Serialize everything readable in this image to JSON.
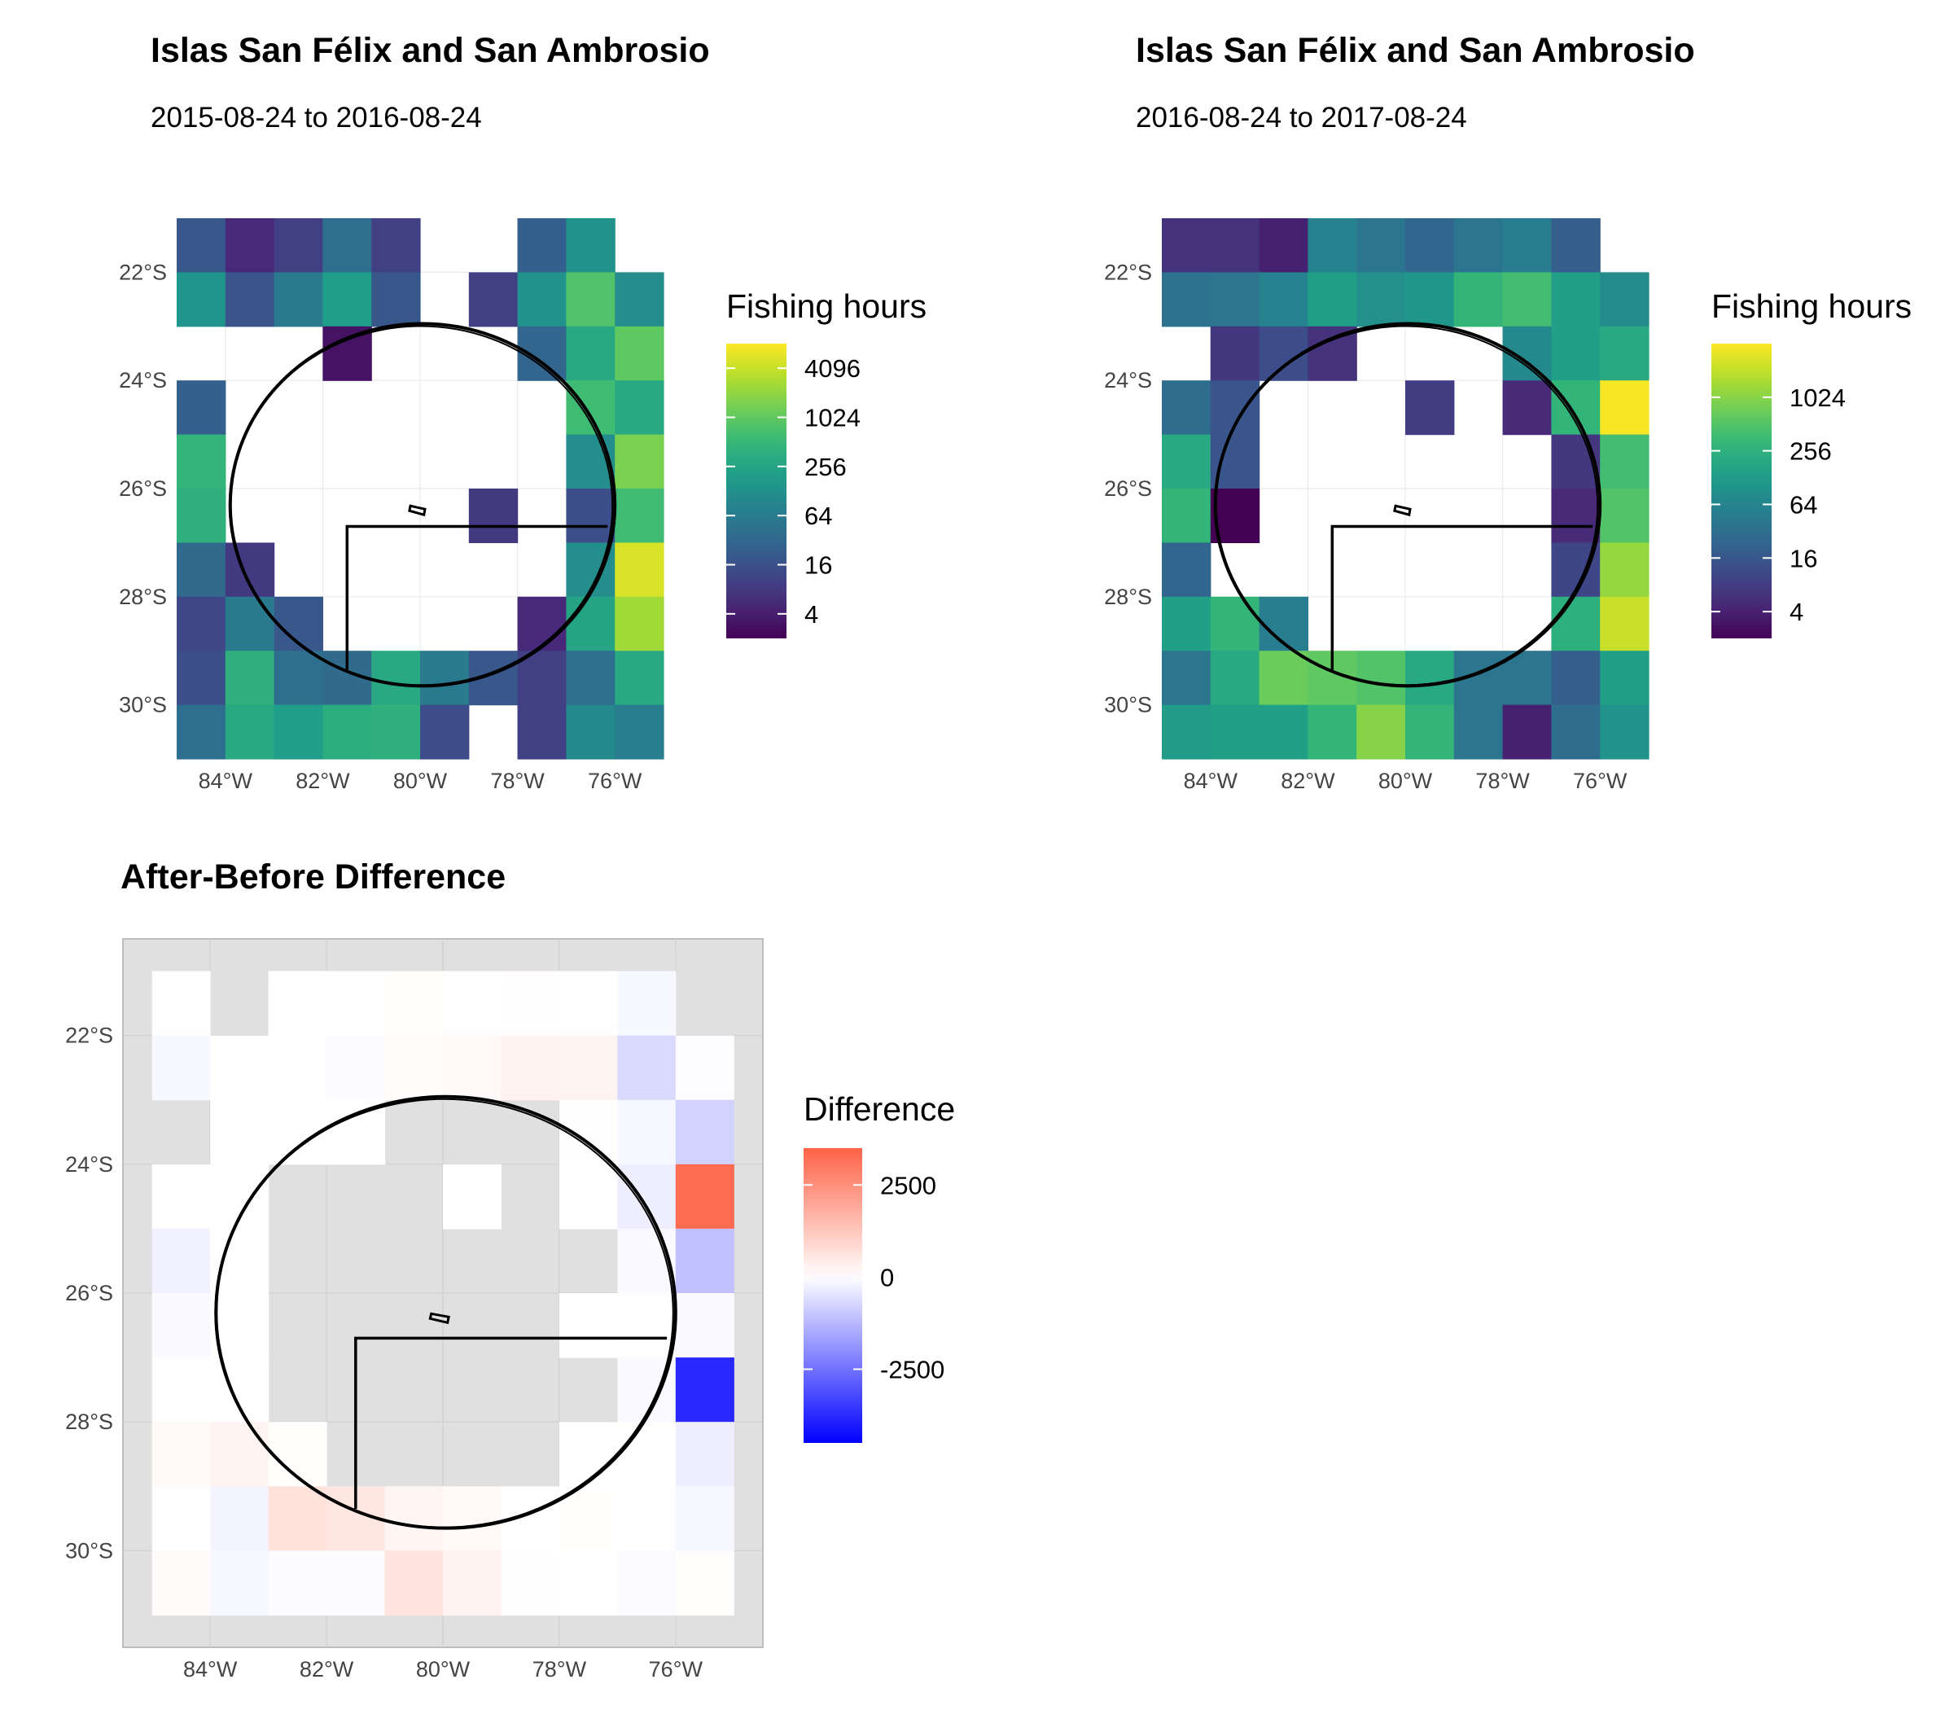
{
  "panels": {
    "before": {
      "title": "Islas San Félix and San Ambrosio",
      "subtitle": "2015-08-24 to 2016-08-24",
      "legend_title": "Fishing hours",
      "legend_ticks": [
        "4096",
        "1024",
        "256",
        "64",
        "16",
        "4"
      ]
    },
    "after": {
      "title": "Islas San Félix and San Ambrosio",
      "subtitle": "2016-08-24 to 2017-08-24",
      "legend_title": "Fishing hours",
      "legend_ticks": [
        "1024",
        "256",
        "64",
        "16",
        "4"
      ]
    },
    "diff": {
      "title": "After-Before Difference",
      "legend_title": "Difference",
      "legend_ticks": [
        "2500",
        "0",
        "-2500"
      ]
    }
  },
  "chart_data": [
    {
      "type": "heatmap",
      "title": "Islas San Félix and San Ambrosio",
      "subtitle": "2015-08-24 to 2016-08-24",
      "x_tick_labels": [
        "84°W",
        "82°W",
        "80°W",
        "78°W",
        "76°W"
      ],
      "y_tick_labels": [
        "22°S",
        "24°S",
        "26°S",
        "28°S",
        "30°S"
      ],
      "x_ticks": [
        -84,
        -82,
        -80,
        -78,
        -76
      ],
      "y_ticks": [
        -22,
        -24,
        -26,
        -28,
        -30
      ],
      "xlim": [
        -85,
        -75
      ],
      "ylim": [
        -31,
        -21
      ],
      "color_scale": "viridis, log2",
      "legend_title": "Fishing hours",
      "legend_breaks": [
        4096,
        1024,
        256,
        64,
        16,
        4
      ],
      "value_range": [
        2,
        8192
      ],
      "cell_lon": [
        -84.5,
        -83.5,
        -82.5,
        -81.5,
        -80.5,
        -79.5,
        -78.5,
        -77.5,
        -76.5,
        -75.5
      ],
      "cell_lat": [
        -21.5,
        -22.5,
        -23.5,
        -24.5,
        -25.5,
        -26.5,
        -27.5,
        -28.5,
        -29.5,
        -30.5
      ],
      "values": [
        [
          20,
          5,
          10,
          40,
          10,
          null,
          null,
          25,
          140,
          null
        ],
        [
          150,
          18,
          60,
          200,
          20,
          null,
          10,
          140,
          800,
          120
        ],
        [
          null,
          null,
          null,
          3,
          null,
          null,
          null,
          30,
          300,
          1000
        ],
        [
          25,
          null,
          null,
          null,
          null,
          null,
          null,
          null,
          600,
          300
        ],
        [
          450,
          null,
          null,
          null,
          null,
          null,
          null,
          null,
          120,
          1500
        ],
        [
          400,
          null,
          null,
          null,
          null,
          null,
          8,
          null,
          15,
          600
        ],
        [
          35,
          8,
          null,
          null,
          null,
          null,
          null,
          null,
          120,
          5000
        ],
        [
          12,
          60,
          20,
          null,
          null,
          null,
          null,
          5,
          250,
          2500
        ],
        [
          15,
          400,
          40,
          35,
          300,
          60,
          20,
          10,
          40,
          300
        ],
        [
          40,
          300,
          200,
          350,
          400,
          14,
          null,
          10,
          100,
          70
        ]
      ]
    },
    {
      "type": "heatmap",
      "title": "Islas San Félix and San Ambrosio",
      "subtitle": "2016-08-24 to 2017-08-24",
      "x_tick_labels": [
        "84°W",
        "82°W",
        "80°W",
        "78°W",
        "76°W"
      ],
      "y_tick_labels": [
        "22°S",
        "24°S",
        "26°S",
        "28°S",
        "30°S"
      ],
      "x_ticks": [
        -84,
        -82,
        -80,
        -78,
        -76
      ],
      "y_ticks": [
        -22,
        -24,
        -26,
        -28,
        -30
      ],
      "xlim": [
        -85,
        -75
      ],
      "ylim": [
        -31,
        -21
      ],
      "color_scale": "viridis, log2",
      "legend_title": "Fishing hours",
      "legend_breaks": [
        1024,
        256,
        64,
        16,
        4
      ],
      "value_range": [
        2,
        4096
      ],
      "cell_lon": [
        -84.5,
        -83.5,
        -82.5,
        -81.5,
        -80.5,
        -79.5,
        -78.5,
        -77.5,
        -76.5,
        -75.5
      ],
      "cell_lat": [
        -21.5,
        -22.5,
        -23.5,
        -24.5,
        -25.5,
        -26.5,
        -27.5,
        -28.5,
        -29.5,
        -30.5
      ],
      "values": [
        [
          6,
          6,
          4,
          60,
          40,
          25,
          40,
          50,
          20,
          null
        ],
        [
          35,
          40,
          60,
          150,
          90,
          110,
          300,
          400,
          150,
          80
        ],
        [
          null,
          7,
          12,
          6,
          null,
          null,
          null,
          70,
          150,
          200
        ],
        [
          30,
          15,
          null,
          null,
          null,
          8,
          null,
          5,
          300,
          3800
        ],
        [
          200,
          15,
          null,
          null,
          null,
          null,
          null,
          null,
          7,
          400
        ],
        [
          300,
          2,
          null,
          null,
          null,
          null,
          null,
          null,
          5,
          500
        ],
        [
          25,
          null,
          null,
          null,
          null,
          null,
          null,
          null,
          10,
          1200
        ],
        [
          150,
          300,
          50,
          null,
          null,
          null,
          null,
          null,
          250,
          2200
        ],
        [
          40,
          200,
          700,
          600,
          500,
          200,
          40,
          40,
          20,
          150
        ],
        [
          130,
          150,
          150,
          300,
          1000,
          300,
          40,
          4,
          30,
          100
        ]
      ]
    },
    {
      "type": "heatmap",
      "title": "After-Before Difference",
      "x_tick_labels": [
        "84°W",
        "82°W",
        "80°W",
        "78°W",
        "76°W"
      ],
      "y_tick_labels": [
        "22°S",
        "24°S",
        "26°S",
        "28°S",
        "30°S"
      ],
      "x_ticks": [
        -84,
        -82,
        -80,
        -78,
        -76
      ],
      "y_ticks": [
        -22,
        -24,
        -26,
        -28,
        -30
      ],
      "xlim": [
        -85.5,
        -74.5
      ],
      "ylim": [
        -31.5,
        -20.5
      ],
      "color_scale": "diverging blue-white-red",
      "legend_title": "Difference",
      "legend_breaks": [
        2500,
        0,
        -2500
      ],
      "value_range": [
        -4500,
        3500
      ],
      "cell_lon": [
        -84.5,
        -83.5,
        -82.5,
        -81.5,
        -80.5,
        -79.5,
        -78.5,
        -77.5,
        -76.5,
        -75.5
      ],
      "cell_lat": [
        -21.5,
        -22.5,
        -23.5,
        -24.5,
        -25.5,
        -26.5,
        -27.5,
        -28.5,
        -29.5,
        -30.5
      ],
      "values": [
        [
          -10,
          null,
          -5,
          20,
          30,
          25,
          40,
          25,
          -120,
          null
        ],
        [
          -115,
          22,
          -20,
          -50,
          70,
          110,
          300,
          260,
          -650,
          -40
        ],
        [
          null,
          7,
          2,
          3,
          null,
          null,
          null,
          40,
          -150,
          -800
        ],
        [
          5,
          15,
          null,
          null,
          null,
          8,
          null,
          5,
          -300,
          3300
        ],
        [
          -245,
          15,
          null,
          null,
          null,
          null,
          null,
          null,
          -113,
          -1100
        ],
        [
          -100,
          2,
          null,
          null,
          null,
          null,
          null,
          0,
          -10,
          -100
        ],
        [
          -10,
          -8,
          null,
          null,
          null,
          null,
          null,
          null,
          -110,
          -3800
        ],
        [
          138,
          240,
          30,
          null,
          null,
          null,
          null,
          0,
          0,
          -300
        ],
        [
          25,
          -200,
          660,
          565,
          200,
          140,
          20,
          30,
          -20,
          -150
        ],
        [
          90,
          -150,
          -50,
          -50,
          600,
          286,
          40,
          -6,
          -70,
          30
        ]
      ]
    }
  ]
}
